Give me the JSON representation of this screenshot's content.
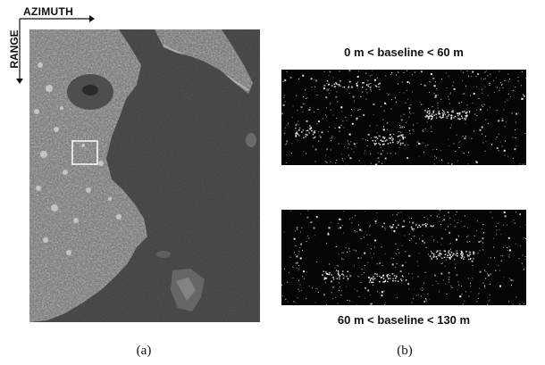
{
  "axes": {
    "azimuth_label": "AZIMUTH",
    "range_label": "RANGE"
  },
  "panel_b": {
    "top_label": "0 m < baseline < 60 m",
    "bottom_label": "60 m < baseline < 130 m"
  },
  "captions": {
    "a": "(a)",
    "b": "(b)"
  },
  "colors": {
    "sea": "#3c3c3c",
    "land_light": "#9a9a9a",
    "strip_background": "#050505",
    "speckle": "#ffffff"
  }
}
